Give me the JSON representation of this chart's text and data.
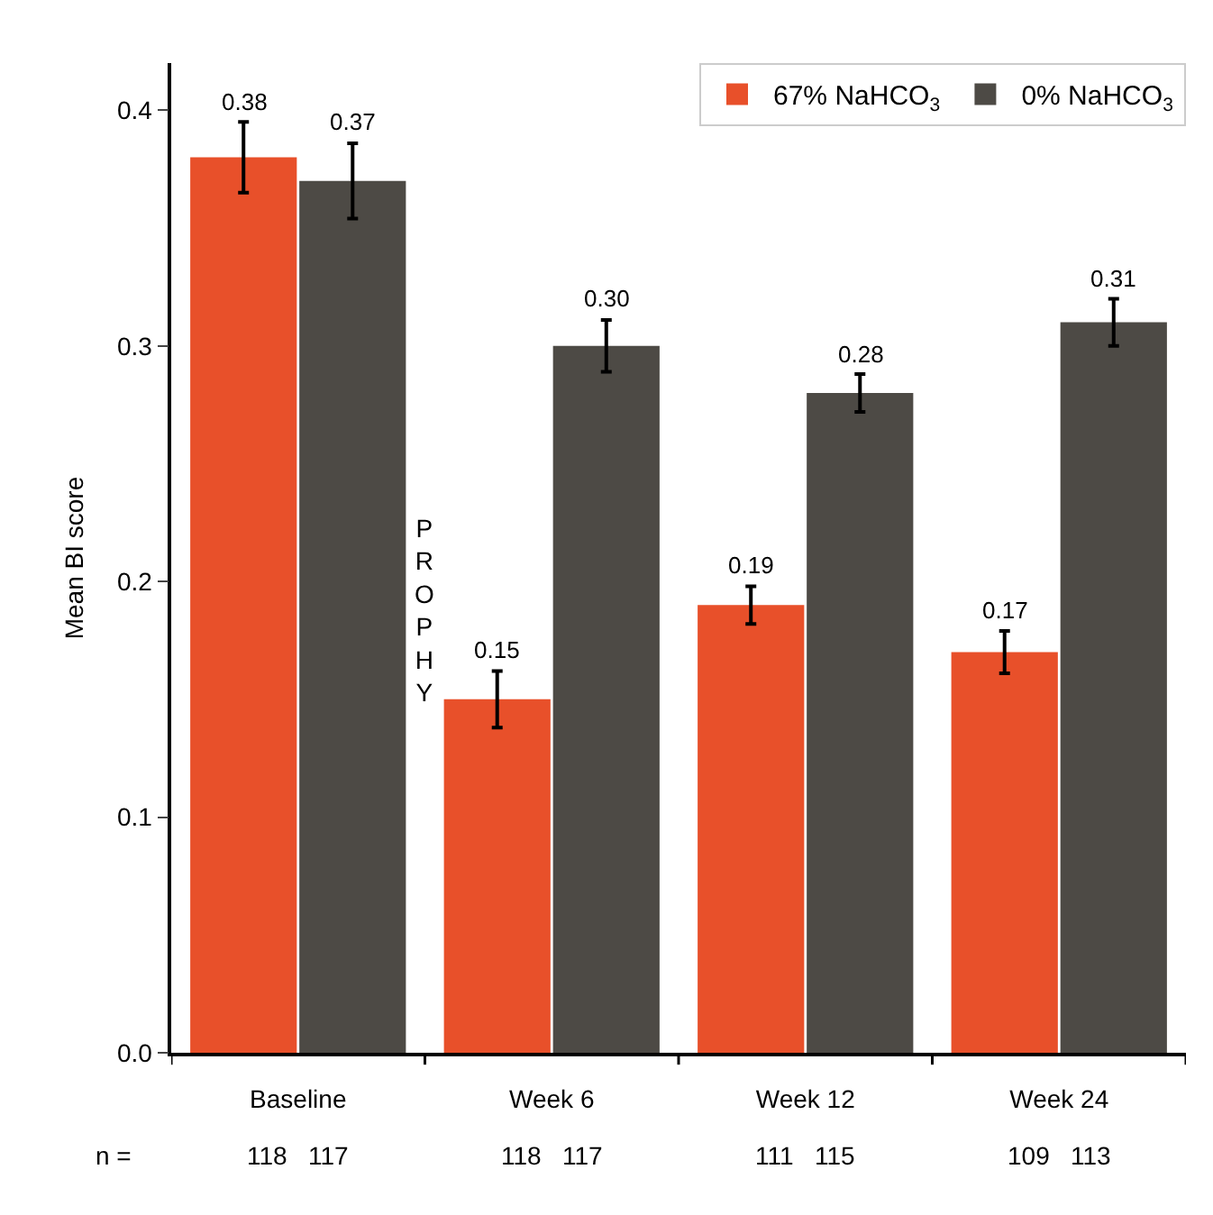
{
  "chart_data": {
    "type": "bar",
    "ylabel": "Mean BI score",
    "categories": [
      "Baseline",
      "Week 6",
      "Week 12",
      "Week 24"
    ],
    "series": [
      {
        "name": "67% NaHCO$_{3}$",
        "color": "#e8502a",
        "values": [
          0.38,
          0.15,
          0.19,
          0.17
        ],
        "errors": [
          0.015,
          0.012,
          0.008,
          0.009
        ],
        "value_labels": [
          "0.38",
          "0.15",
          "0.19",
          "0.17"
        ]
      },
      {
        "name": "0% NaHCO$_{3}$",
        "color": "#4d4a45",
        "values": [
          0.37,
          0.3,
          0.28,
          0.31
        ],
        "errors": [
          0.016,
          0.011,
          0.008,
          0.01
        ],
        "value_labels": [
          "0.37",
          "0.30",
          "0.28",
          "0.31"
        ]
      }
    ],
    "ylim": [
      0,
      0.42
    ],
    "yticks": [
      {
        "value": 0,
        "label": "0.0"
      },
      {
        "value": 0.1,
        "label": "0.1"
      },
      {
        "value": 0.2,
        "label": "0.2"
      },
      {
        "value": 0.3,
        "label": "0.3"
      },
      {
        "value": 0.4,
        "label": "0.4"
      }
    ],
    "legend": "top right",
    "annotations": [
      "PROPHY",
      "n =",
      "118   117",
      "118   117",
      "111   115",
      "109   113"
    ]
  }
}
